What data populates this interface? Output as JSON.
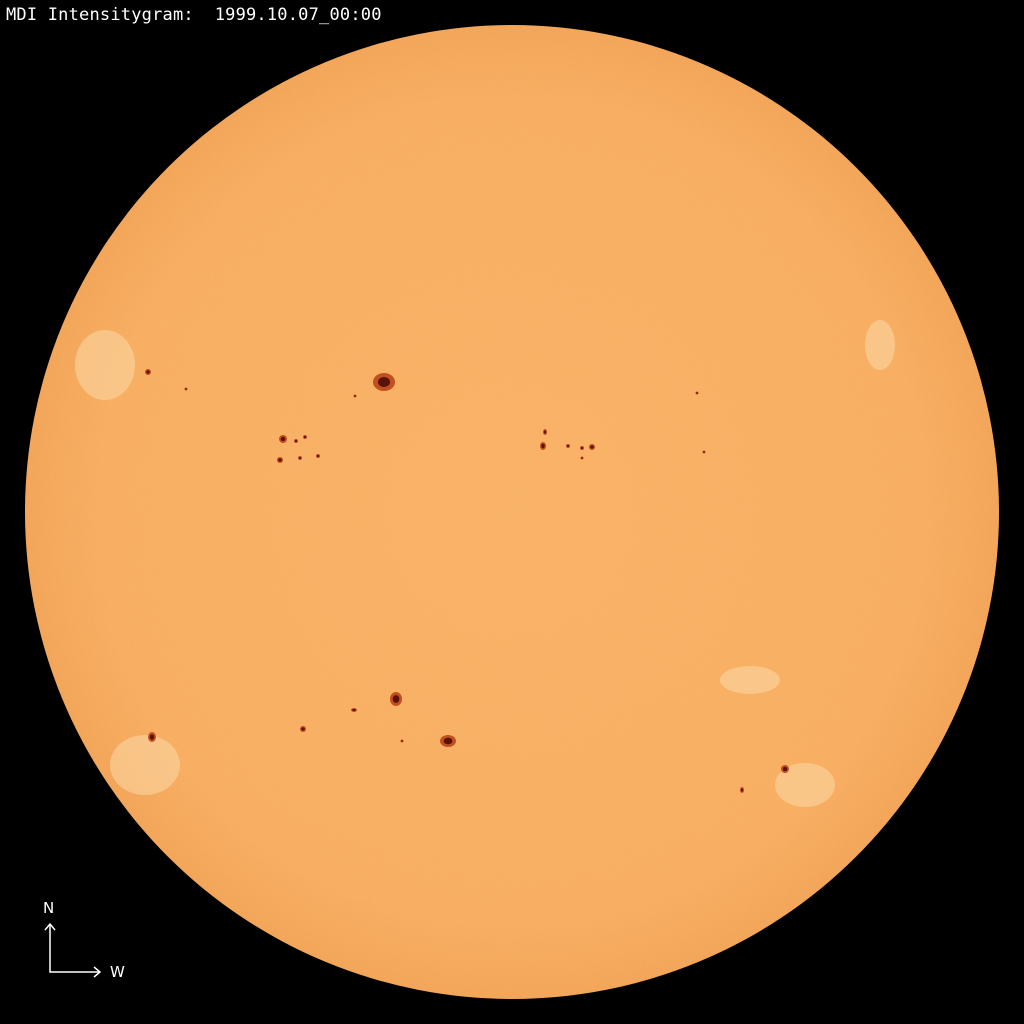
{
  "title": "MDI Intensitygram:  1999.10.07_00:00",
  "compass": {
    "north_label": "N",
    "west_label": "W",
    "icon": "compass-arrows-icon"
  },
  "colors": {
    "background": "#000000",
    "disc": "#F8AE62",
    "limb": "#F2A254",
    "sunspot_penumbra": "#C0501E",
    "sunspot_umbra": "#5A1208",
    "text": "#FFFFFF"
  }
}
